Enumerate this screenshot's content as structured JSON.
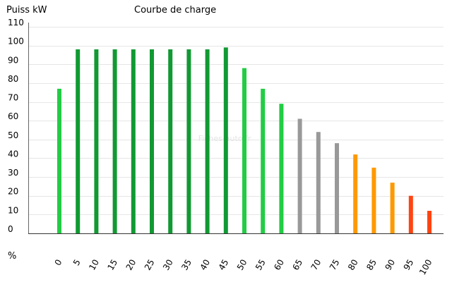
{
  "chart_data": {
    "type": "bar",
    "title": "Courbe de charge",
    "ylabel": "Puiss kW",
    "xlabel": "%",
    "watermark": "Fiches-auto.fr",
    "ylim": [
      0,
      110
    ],
    "yticks": [
      0,
      10,
      20,
      30,
      40,
      50,
      60,
      70,
      80,
      90,
      100,
      110
    ],
    "grid": true,
    "categories": [
      "0",
      "5",
      "10",
      "15",
      "20",
      "25",
      "30",
      "35",
      "40",
      "45",
      "50",
      "55",
      "60",
      "65",
      "70",
      "75",
      "80",
      "85",
      "90",
      "95",
      "100"
    ],
    "values": [
      77,
      98,
      98,
      98,
      98,
      98,
      98,
      98,
      98,
      99,
      88,
      77,
      69,
      61,
      54,
      48,
      42,
      35,
      27,
      20,
      12
    ],
    "bar_colors": [
      "#22cc44",
      "#119933",
      "#119933",
      "#119933",
      "#119933",
      "#119933",
      "#119933",
      "#119933",
      "#119933",
      "#119933",
      "#22cc44",
      "#22cc44",
      "#22cc44",
      "#999999",
      "#999999",
      "#999999",
      "#ff9900",
      "#ff9900",
      "#ff9900",
      "#ff4411",
      "#ff4411"
    ]
  }
}
